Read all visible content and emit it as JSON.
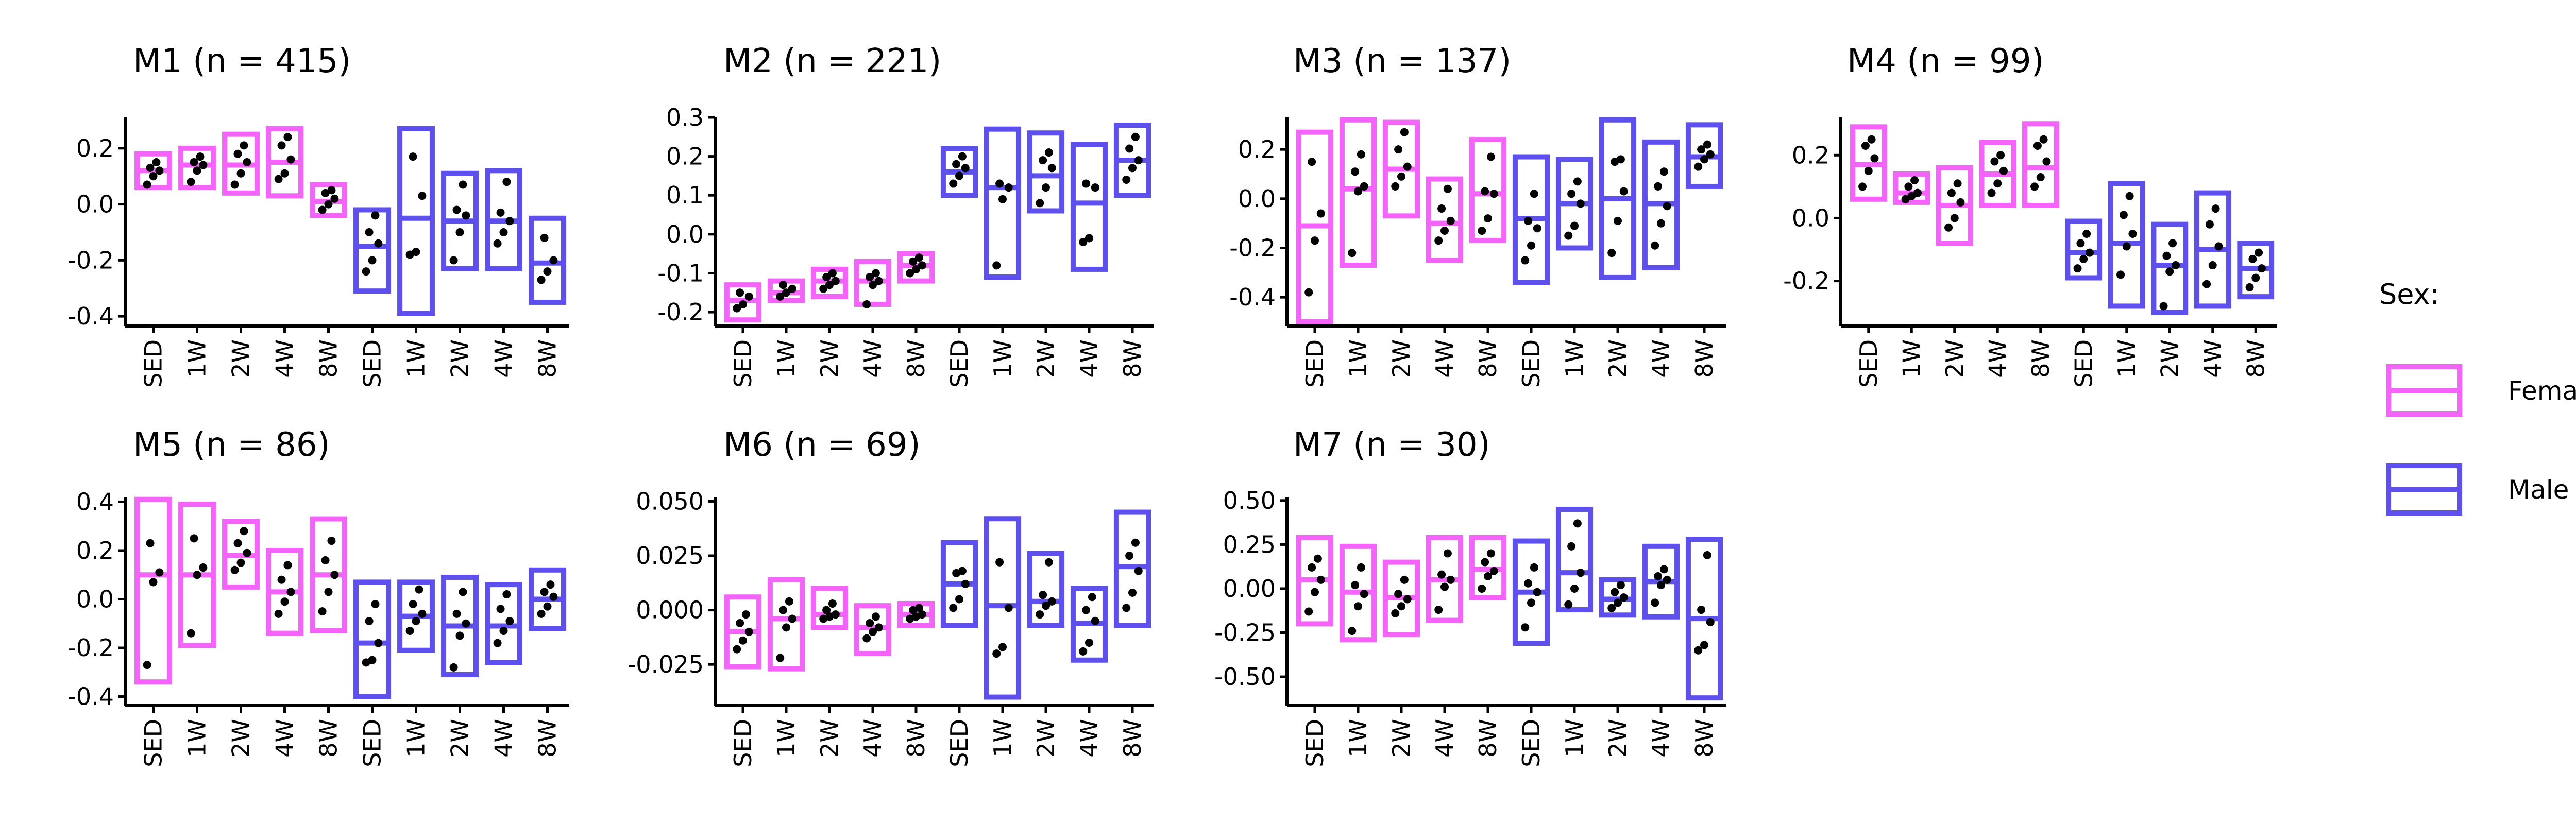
{
  "chart_data": [
    {
      "type": "box",
      "title": "M1 (n = 415)",
      "yticks": [
        "0.2",
        "0.0",
        "-0.2",
        "-0.4"
      ],
      "female": [
        {
          "cat": "SED",
          "box": [
            0.06,
            0.18
          ],
          "mid": 0.12,
          "points": [
            0.07,
            0.1,
            0.12,
            0.13,
            0.15
          ]
        },
        {
          "cat": "1W",
          "box": [
            0.06,
            0.2
          ],
          "mid": 0.14,
          "points": [
            0.08,
            0.12,
            0.14,
            0.15,
            0.17
          ]
        },
        {
          "cat": "2W",
          "box": [
            0.04,
            0.25
          ],
          "mid": 0.14,
          "points": [
            0.07,
            0.11,
            0.15,
            0.18,
            0.21
          ]
        },
        {
          "cat": "4W",
          "box": [
            0.03,
            0.27
          ],
          "mid": 0.15,
          "points": [
            0.09,
            0.11,
            0.16,
            0.21,
            0.24
          ]
        },
        {
          "cat": "8W",
          "box": [
            -0.04,
            0.07
          ],
          "mid": 0.01,
          "points": [
            -0.02,
            0.0,
            0.02,
            0.04,
            0.05
          ]
        }
      ],
      "male": [
        {
          "cat": "SED",
          "box": [
            -0.31,
            -0.02
          ],
          "mid": -0.15,
          "points": [
            -0.24,
            -0.2,
            -0.14,
            -0.1,
            -0.04
          ]
        },
        {
          "cat": "1W",
          "box": [
            -0.39,
            0.27
          ],
          "mid": -0.05,
          "points": [
            -0.18,
            -0.17,
            0.03,
            0.17
          ]
        },
        {
          "cat": "2W",
          "box": [
            -0.23,
            0.11
          ],
          "mid": -0.06,
          "points": [
            -0.2,
            -0.1,
            -0.04,
            -0.02,
            0.07
          ]
        },
        {
          "cat": "4W",
          "box": [
            -0.23,
            0.12
          ],
          "mid": -0.06,
          "points": [
            -0.14,
            -0.1,
            -0.06,
            -0.03,
            0.08
          ]
        },
        {
          "cat": "8W",
          "box": [
            -0.35,
            -0.05
          ],
          "mid": -0.21,
          "points": [
            -0.27,
            -0.24,
            -0.2,
            -0.12
          ]
        }
      ]
    },
    {
      "type": "box",
      "title": "M2 (n = 221)",
      "yticks": [
        "0.3",
        "0.2",
        "0.1",
        "0.0",
        "-0.1",
        "-0.2"
      ],
      "female": [
        {
          "cat": "SED",
          "box": [
            -0.22,
            -0.13
          ],
          "mid": -0.17,
          "points": [
            -0.19,
            -0.18,
            -0.16,
            -0.15
          ]
        },
        {
          "cat": "1W",
          "box": [
            -0.17,
            -0.12
          ],
          "mid": -0.15,
          "points": [
            -0.16,
            -0.15,
            -0.14,
            -0.13
          ]
        },
        {
          "cat": "2W",
          "box": [
            -0.16,
            -0.09
          ],
          "mid": -0.12,
          "points": [
            -0.14,
            -0.13,
            -0.12,
            -0.11,
            -0.1
          ]
        },
        {
          "cat": "4W",
          "box": [
            -0.18,
            -0.07
          ],
          "mid": -0.12,
          "points": [
            -0.18,
            -0.13,
            -0.12,
            -0.11,
            -0.1
          ]
        },
        {
          "cat": "8W",
          "box": [
            -0.12,
            -0.05
          ],
          "mid": -0.08,
          "points": [
            -0.1,
            -0.09,
            -0.08,
            -0.07,
            -0.06
          ]
        }
      ],
      "male": [
        {
          "cat": "SED",
          "box": [
            0.1,
            0.22
          ],
          "mid": 0.16,
          "points": [
            0.13,
            0.15,
            0.17,
            0.18,
            0.2
          ]
        },
        {
          "cat": "1W",
          "box": [
            -0.11,
            0.27
          ],
          "mid": 0.12,
          "points": [
            -0.08,
            0.09,
            0.12,
            0.13
          ]
        },
        {
          "cat": "2W",
          "box": [
            0.06,
            0.26
          ],
          "mid": 0.15,
          "points": [
            0.08,
            0.12,
            0.17,
            0.19,
            0.21
          ]
        },
        {
          "cat": "4W",
          "box": [
            -0.09,
            0.23
          ],
          "mid": 0.08,
          "points": [
            -0.02,
            -0.01,
            0.12,
            0.13
          ]
        },
        {
          "cat": "8W",
          "box": [
            0.1,
            0.28
          ],
          "mid": 0.19,
          "points": [
            0.14,
            0.17,
            0.19,
            0.22,
            0.25
          ]
        }
      ]
    },
    {
      "type": "box",
      "title": "M3 (n = 137)",
      "yticks": [
        "0.2",
        "0.0",
        "-0.2",
        "-0.4"
      ],
      "female": [
        {
          "cat": "SED",
          "box": [
            -0.5,
            0.27
          ],
          "mid": -0.11,
          "points": [
            -0.38,
            -0.17,
            -0.06,
            0.15
          ]
        },
        {
          "cat": "1W",
          "box": [
            -0.27,
            0.32
          ],
          "mid": 0.04,
          "points": [
            -0.22,
            0.03,
            0.05,
            0.11,
            0.18
          ]
        },
        {
          "cat": "2W",
          "box": [
            -0.07,
            0.31
          ],
          "mid": 0.12,
          "points": [
            0.05,
            0.09,
            0.13,
            0.2,
            0.27
          ]
        },
        {
          "cat": "4W",
          "box": [
            -0.25,
            0.08
          ],
          "mid": -0.1,
          "points": [
            -0.17,
            -0.13,
            -0.09,
            -0.04,
            0.04
          ]
        },
        {
          "cat": "8W",
          "box": [
            -0.17,
            0.24
          ],
          "mid": 0.02,
          "points": [
            -0.13,
            -0.08,
            0.02,
            0.03,
            0.17
          ]
        }
      ],
      "male": [
        {
          "cat": "SED",
          "box": [
            -0.34,
            0.17
          ],
          "mid": -0.08,
          "points": [
            -0.25,
            -0.19,
            -0.12,
            -0.09,
            0.02
          ]
        },
        {
          "cat": "1W",
          "box": [
            -0.2,
            0.16
          ],
          "mid": -0.02,
          "points": [
            -0.15,
            -0.11,
            -0.02,
            0.02,
            0.07
          ]
        },
        {
          "cat": "2W",
          "box": [
            -0.32,
            0.32
          ],
          "mid": 0.0,
          "points": [
            -0.22,
            -0.09,
            0.03,
            0.15,
            0.16
          ]
        },
        {
          "cat": "4W",
          "box": [
            -0.28,
            0.23
          ],
          "mid": -0.02,
          "points": [
            -0.19,
            -0.1,
            -0.03,
            0.05,
            0.11
          ]
        },
        {
          "cat": "8W",
          "box": [
            0.05,
            0.3
          ],
          "mid": 0.17,
          "points": [
            0.13,
            0.16,
            0.18,
            0.2,
            0.22
          ]
        }
      ]
    },
    {
      "type": "box",
      "title": "M4 (n = 99)",
      "yticks": [
        "0.2",
        "0.0",
        "-0.2"
      ],
      "female": [
        {
          "cat": "SED",
          "box": [
            0.06,
            0.29
          ],
          "mid": 0.17,
          "points": [
            0.1,
            0.15,
            0.19,
            0.23,
            0.25
          ]
        },
        {
          "cat": "1W",
          "box": [
            0.05,
            0.14
          ],
          "mid": 0.08,
          "points": [
            0.06,
            0.07,
            0.08,
            0.1,
            0.12
          ]
        },
        {
          "cat": "2W",
          "box": [
            -0.08,
            0.16
          ],
          "mid": 0.04,
          "points": [
            -0.03,
            0.0,
            0.05,
            0.08,
            0.11
          ]
        },
        {
          "cat": "4W",
          "box": [
            0.04,
            0.24
          ],
          "mid": 0.14,
          "points": [
            0.08,
            0.11,
            0.15,
            0.18,
            0.2
          ]
        },
        {
          "cat": "8W",
          "box": [
            0.04,
            0.3
          ],
          "mid": 0.16,
          "points": [
            0.1,
            0.13,
            0.18,
            0.23,
            0.25
          ]
        }
      ],
      "male": [
        {
          "cat": "SED",
          "box": [
            -0.19,
            -0.01
          ],
          "mid": -0.11,
          "points": [
            -0.16,
            -0.13,
            -0.11,
            -0.08,
            -0.05
          ]
        },
        {
          "cat": "1W",
          "box": [
            -0.28,
            0.11
          ],
          "mid": -0.08,
          "points": [
            -0.18,
            -0.09,
            -0.05,
            0.01,
            0.07
          ]
        },
        {
          "cat": "2W",
          "box": [
            -0.3,
            -0.02
          ],
          "mid": -0.15,
          "points": [
            -0.28,
            -0.17,
            -0.15,
            -0.12,
            -0.08
          ]
        },
        {
          "cat": "4W",
          "box": [
            -0.28,
            0.08
          ],
          "mid": -0.1,
          "points": [
            -0.21,
            -0.15,
            -0.09,
            -0.02,
            0.03
          ]
        },
        {
          "cat": "8W",
          "box": [
            -0.25,
            -0.08
          ],
          "mid": -0.16,
          "points": [
            -0.22,
            -0.19,
            -0.16,
            -0.13,
            -0.11
          ]
        }
      ]
    },
    {
      "type": "box",
      "title": "M5 (n = 86)",
      "yticks": [
        "0.4",
        "0.2",
        "0.0",
        "-0.2",
        "-0.4"
      ],
      "female": [
        {
          "cat": "SED",
          "box": [
            -0.34,
            0.41
          ],
          "mid": 0.1,
          "points": [
            -0.27,
            0.07,
            0.11,
            0.23
          ]
        },
        {
          "cat": "1W",
          "box": [
            -0.19,
            0.39
          ],
          "mid": 0.1,
          "points": [
            -0.14,
            0.1,
            0.13,
            0.25
          ]
        },
        {
          "cat": "2W",
          "box": [
            0.05,
            0.32
          ],
          "mid": 0.18,
          "points": [
            0.12,
            0.15,
            0.19,
            0.23,
            0.28
          ]
        },
        {
          "cat": "4W",
          "box": [
            -0.14,
            0.2
          ],
          "mid": 0.03,
          "points": [
            -0.06,
            -0.01,
            0.03,
            0.08,
            0.14
          ]
        },
        {
          "cat": "8W",
          "box": [
            -0.13,
            0.33
          ],
          "mid": 0.1,
          "points": [
            -0.05,
            0.03,
            0.1,
            0.16,
            0.24
          ]
        }
      ],
      "male": [
        {
          "cat": "SED",
          "box": [
            -0.4,
            0.07
          ],
          "mid": -0.18,
          "points": [
            -0.26,
            -0.25,
            -0.18,
            -0.09,
            -0.02
          ]
        },
        {
          "cat": "1W",
          "box": [
            -0.21,
            0.07
          ],
          "mid": -0.07,
          "points": [
            -0.13,
            -0.09,
            -0.06,
            -0.02,
            0.04
          ]
        },
        {
          "cat": "2W",
          "box": [
            -0.31,
            0.09
          ],
          "mid": -0.11,
          "points": [
            -0.28,
            -0.15,
            -0.1,
            -0.06,
            0.03
          ]
        },
        {
          "cat": "4W",
          "box": [
            -0.26,
            0.06
          ],
          "mid": -0.11,
          "points": [
            -0.18,
            -0.13,
            -0.09,
            -0.04,
            0.02
          ]
        },
        {
          "cat": "8W",
          "box": [
            -0.12,
            0.12
          ],
          "mid": 0.0,
          "points": [
            -0.06,
            -0.03,
            0.01,
            0.03,
            0.06
          ]
        }
      ]
    },
    {
      "type": "box",
      "title": "M6 (n = 69)",
      "yticks": [
        "0.050",
        "0.025",
        "0.000",
        "-0.025"
      ],
      "female": [
        {
          "cat": "SED",
          "box": [
            -0.026,
            0.006
          ],
          "mid": -0.01,
          "points": [
            -0.018,
            -0.014,
            -0.01,
            -0.006,
            -0.002
          ]
        },
        {
          "cat": "1W",
          "box": [
            -0.027,
            0.014
          ],
          "mid": -0.004,
          "points": [
            -0.022,
            -0.008,
            -0.004,
            0.0,
            0.004
          ]
        },
        {
          "cat": "2W",
          "box": [
            -0.008,
            0.01
          ],
          "mid": -0.002,
          "points": [
            -0.004,
            -0.003,
            -0.002,
            0.0,
            0.003
          ]
        },
        {
          "cat": "4W",
          "box": [
            -0.02,
            0.002
          ],
          "mid": -0.008,
          "points": [
            -0.013,
            -0.01,
            -0.008,
            -0.006,
            -0.003
          ]
        },
        {
          "cat": "8W",
          "box": [
            -0.007,
            0.003
          ],
          "mid": -0.002,
          "points": [
            -0.004,
            -0.003,
            -0.002,
            0.0,
            0.001
          ]
        }
      ],
      "male": [
        {
          "cat": "SED",
          "box": [
            -0.007,
            0.031
          ],
          "mid": 0.012,
          "points": [
            0.001,
            0.005,
            0.012,
            0.017,
            0.018
          ]
        },
        {
          "cat": "1W",
          "box": [
            -0.04,
            0.042
          ],
          "mid": 0.002,
          "points": [
            -0.02,
            -0.017,
            0.001,
            0.022
          ]
        },
        {
          "cat": "2W",
          "box": [
            -0.007,
            0.026
          ],
          "mid": 0.004,
          "points": [
            -0.002,
            0.002,
            0.004,
            0.007,
            0.022
          ]
        },
        {
          "cat": "4W",
          "box": [
            -0.023,
            0.01
          ],
          "mid": -0.006,
          "points": [
            -0.019,
            -0.015,
            -0.005,
            0.0,
            0.006
          ]
        },
        {
          "cat": "8W",
          "box": [
            -0.007,
            0.045
          ],
          "mid": 0.02,
          "points": [
            0.001,
            0.008,
            0.018,
            0.025,
            0.031
          ]
        }
      ]
    },
    {
      "type": "box",
      "title": "M7 (n = 30)",
      "yticks": [
        "0.50",
        "0.25",
        "0.00",
        "-0.25",
        "-0.50"
      ],
      "female": [
        {
          "cat": "SED",
          "box": [
            -0.2,
            0.29
          ],
          "mid": 0.05,
          "points": [
            -0.13,
            -0.02,
            0.05,
            0.12,
            0.17
          ]
        },
        {
          "cat": "1W",
          "box": [
            -0.29,
            0.24
          ],
          "mid": -0.02,
          "points": [
            -0.24,
            -0.1,
            -0.03,
            0.02,
            0.12
          ]
        },
        {
          "cat": "2W",
          "box": [
            -0.26,
            0.15
          ],
          "mid": -0.05,
          "points": [
            -0.14,
            -0.1,
            -0.06,
            -0.03,
            0.05
          ]
        },
        {
          "cat": "4W",
          "box": [
            -0.18,
            0.29
          ],
          "mid": 0.05,
          "points": [
            -0.12,
            0.01,
            0.05,
            0.08,
            0.2
          ]
        },
        {
          "cat": "8W",
          "box": [
            -0.05,
            0.29
          ],
          "mid": 0.11,
          "points": [
            0.0,
            0.07,
            0.1,
            0.15,
            0.2
          ]
        }
      ],
      "male": [
        {
          "cat": "SED",
          "box": [
            -0.31,
            0.27
          ],
          "mid": -0.02,
          "points": [
            -0.22,
            -0.08,
            -0.02,
            0.03,
            0.12
          ]
        },
        {
          "cat": "1W",
          "box": [
            -0.12,
            0.45
          ],
          "mid": 0.09,
          "points": [
            -0.09,
            0.0,
            0.09,
            0.24,
            0.37
          ]
        },
        {
          "cat": "2W",
          "box": [
            -0.15,
            0.05
          ],
          "mid": -0.06,
          "points": [
            -0.11,
            -0.08,
            -0.05,
            -0.02,
            0.02
          ]
        },
        {
          "cat": "4W",
          "box": [
            -0.16,
            0.24
          ],
          "mid": 0.04,
          "points": [
            -0.08,
            0.02,
            0.05,
            0.07,
            0.11
          ]
        },
        {
          "cat": "8W",
          "box": [
            -0.62,
            0.28
          ],
          "mid": -0.17,
          "points": [
            -0.35,
            -0.32,
            -0.19,
            -0.12,
            0.19
          ]
        }
      ]
    }
  ],
  "legend": {
    "title": "Sex:",
    "female_label": "Female",
    "male_label": "Male",
    "female_color": "#F564FA",
    "male_color": "#5D50EC"
  },
  "categories": [
    "SED",
    "1W",
    "2W",
    "4W",
    "8W"
  ]
}
